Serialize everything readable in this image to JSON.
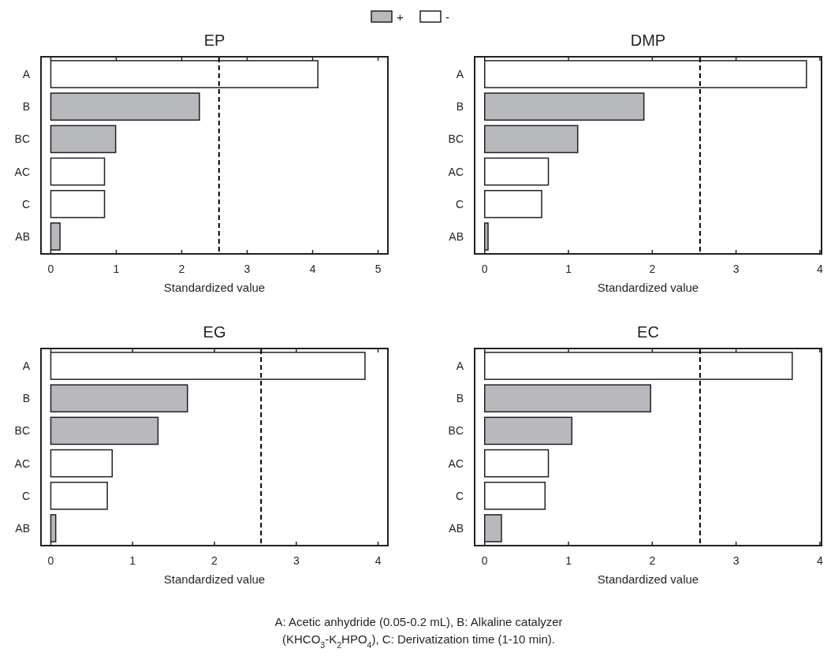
{
  "chart_data": [
    {
      "type": "bar",
      "orientation": "horizontal",
      "title": "EP",
      "xlabel": "Standardized value",
      "categories": [
        "A",
        "B",
        "BC",
        "AC",
        "C",
        "AB"
      ],
      "xlim": [
        -0.15,
        5.15
      ],
      "xticks": [
        0,
        1,
        2,
        3,
        4,
        5
      ],
      "legend": "top",
      "series": [
        {
          "name": "+",
          "color": "#b8b9bc",
          "values": [
            null,
            2.27,
            0.99,
            null,
            null,
            0.14
          ]
        },
        {
          "name": "-",
          "color": "#ffffff",
          "values": [
            4.08,
            null,
            null,
            0.82,
            0.82,
            null
          ]
        }
      ],
      "ref_lines": [
        {
          "axis": "x",
          "value": 2.57,
          "line_style": "dashed",
          "color": "#000000"
        }
      ]
    },
    {
      "type": "bar",
      "orientation": "horizontal",
      "title": "DMP",
      "xlabel": "Standardized value",
      "categories": [
        "A",
        "B",
        "BC",
        "AC",
        "C",
        "AB"
      ],
      "xlim": [
        -0.12,
        4.02
      ],
      "xticks": [
        0,
        1,
        2,
        3,
        4
      ],
      "series": [
        {
          "color": "#b8b9bc",
          "values": [
            null,
            1.9,
            1.11,
            null,
            null,
            0.04
          ]
        },
        {
          "color": "#ffffff",
          "values": [
            3.84,
            null,
            null,
            0.76,
            0.68,
            null
          ]
        }
      ],
      "ref_lines": [
        {
          "axis": "x",
          "value": 2.57,
          "line_style": "dashed",
          "color": "#000000"
        }
      ]
    },
    {
      "type": "bar",
      "orientation": "horizontal",
      "title": "EG",
      "xlabel": "Standardized value",
      "categories": [
        "A",
        "B",
        "BC",
        "AC",
        "C",
        "AB"
      ],
      "xlim": [
        -0.12,
        4.12
      ],
      "xticks": [
        0,
        1,
        2,
        3,
        4
      ],
      "series": [
        {
          "color": "#b8b9bc",
          "values": [
            null,
            1.67,
            1.31,
            null,
            null,
            0.06
          ]
        },
        {
          "color": "#ffffff",
          "values": [
            3.84,
            null,
            null,
            0.75,
            0.69,
            null
          ]
        }
      ],
      "ref_lines": [
        {
          "axis": "x",
          "value": 2.57,
          "line_style": "dashed",
          "color": "#000000"
        }
      ]
    },
    {
      "type": "bar",
      "orientation": "horizontal",
      "title": "EC",
      "xlabel": "Standardized value",
      "categories": [
        "A",
        "B",
        "BC",
        "AC",
        "C",
        "AB"
      ],
      "xlim": [
        -0.12,
        4.02
      ],
      "xticks": [
        0,
        1,
        2,
        3,
        4
      ],
      "series": [
        {
          "color": "#b8b9bc",
          "values": [
            null,
            1.98,
            1.04,
            null,
            null,
            0.2
          ]
        },
        {
          "color": "#ffffff",
          "values": [
            3.67,
            null,
            null,
            0.76,
            0.72,
            null
          ]
        }
      ],
      "ref_lines": [
        {
          "axis": "x",
          "value": 2.57,
          "line_style": "dashed",
          "color": "#000000"
        }
      ],
      "annotations": [
        "A: Acetic anhydride (0.05-0.2 mL), B: Alkaline catalyzer (KHCO$_{3}$-K$_{2}$HPO$_{4}$), C: Derivatization time (1-10 min)."
      ]
    }
  ]
}
